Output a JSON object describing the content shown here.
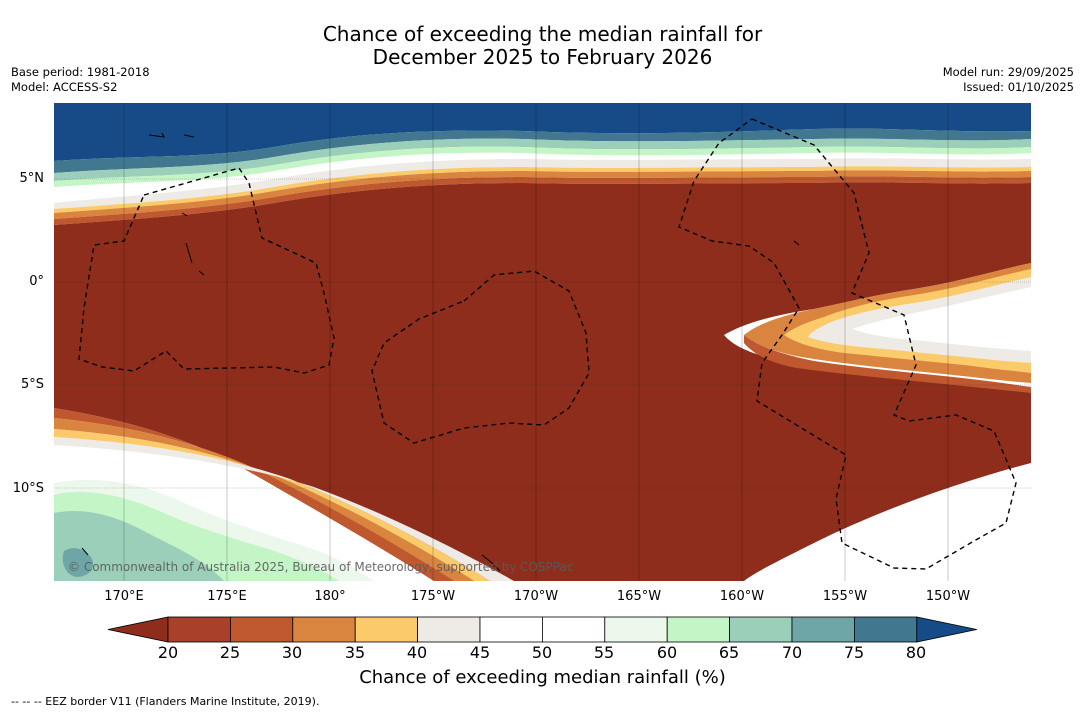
{
  "title": {
    "line1": "Chance of exceeding the median rainfall for",
    "line2": "December 2025 to February 2026"
  },
  "meta": {
    "base_period": "Base period: 1981-2018",
    "model": "Model: ACCESS-S2",
    "model_run": "Model run: 29/09/2025",
    "issued": "Issued: 01/10/2025"
  },
  "map": {
    "lat_labels": [
      "5°N",
      "0°",
      "5°S",
      "10°S"
    ],
    "lon_labels": [
      "170°E",
      "175°E",
      "180°",
      "175°W",
      "170°W",
      "165°W",
      "160°W",
      "155°W",
      "150°W"
    ],
    "copyright": "© Commonwealth of Australia 2025, Bureau of Meteorology, supported by COSPPac"
  },
  "colorbar": {
    "ticks": [
      "20",
      "25",
      "30",
      "35",
      "40",
      "45",
      "50",
      "55",
      "60",
      "65",
      "70",
      "75",
      "80"
    ],
    "colors": [
      "#8e2d1c",
      "#a8402a",
      "#c0582f",
      "#d9843f",
      "#fbcb6b",
      "#eeeae6",
      "#ffffff",
      "#ffffff",
      "#ecf8ec",
      "#c4f5c6",
      "#9ccfb9",
      "#6ea5a6",
      "#41788f",
      "#174b87"
    ],
    "title": "Chance of exceeding median rainfall (%)"
  },
  "footnote": "--  --  -- EEZ border V11 (Flanders Marine Institute, 2019)."
}
